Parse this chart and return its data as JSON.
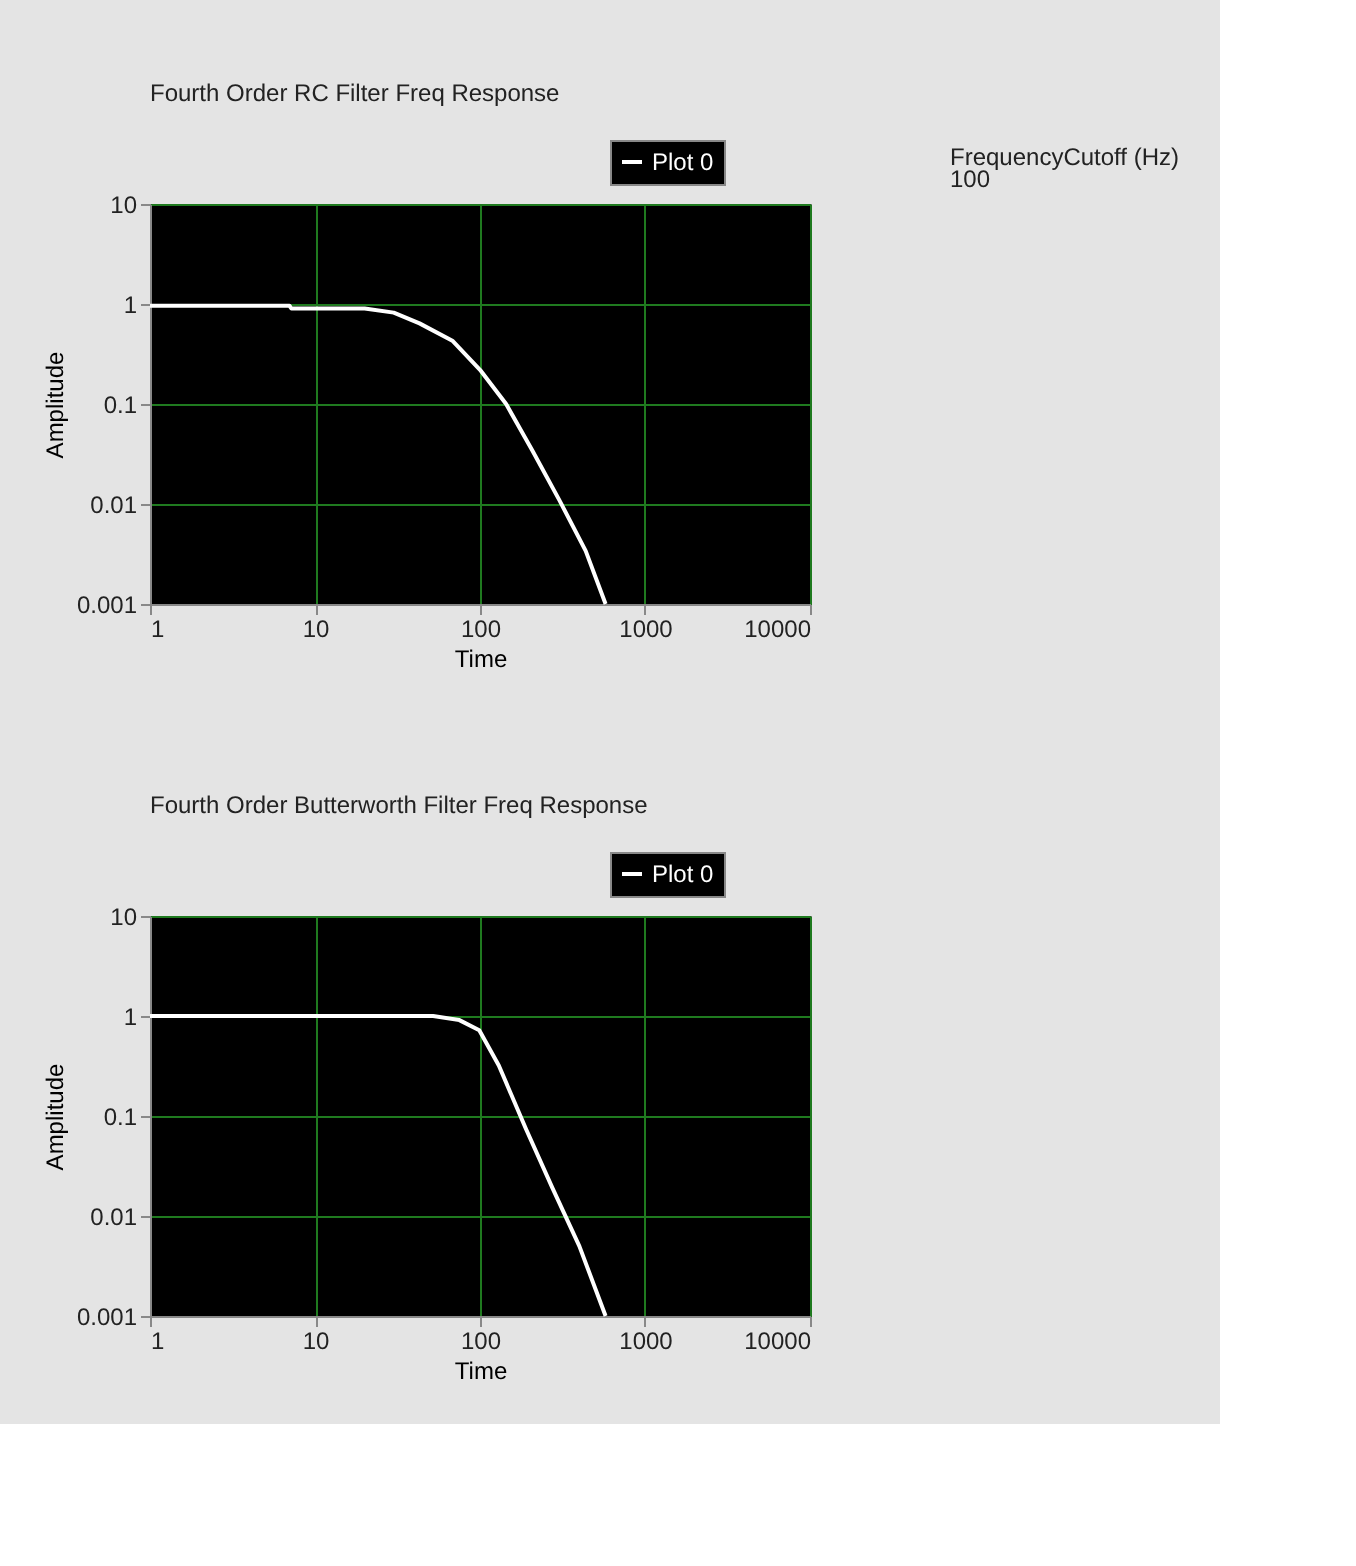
{
  "chart_data": [
    {
      "type": "line",
      "title": "Fourth Order RC Filter Freq Response",
      "xlabel": "Time",
      "ylabel": "Amplitude",
      "log": "xy",
      "grid": true,
      "legend": "top right",
      "xlim": [
        1,
        10000
      ],
      "ylim": [
        0.001,
        10
      ],
      "xticks": [
        1,
        10,
        100,
        1000,
        10000
      ],
      "yticks": [
        0.001,
        0.01,
        0.1,
        1,
        10
      ],
      "annotations": [
        "FrequencyCutoff (Hz)",
        "100"
      ],
      "series": [
        {
          "name": "Plot 0",
          "color": "#ffffff",
          "x": [
            1,
            7,
            7.2,
            20,
            30,
            43,
            68,
            100,
            144,
            208,
            302,
            437,
            577
          ],
          "values": [
            0.96,
            0.96,
            0.9,
            0.9,
            0.82,
            0.64,
            0.43,
            0.22,
            0.1,
            0.034,
            0.011,
            0.0034,
            0.001
          ]
        }
      ]
    },
    {
      "type": "line",
      "title": "Fourth Order Butterworth Filter Freq Response",
      "xlabel": "Time",
      "ylabel": "Amplitude",
      "log": "xy",
      "grid": true,
      "legend": "top right",
      "xlim": [
        1,
        10000
      ],
      "ylim": [
        0.001,
        10
      ],
      "xticks": [
        1,
        10,
        100,
        1000,
        10000
      ],
      "yticks": [
        0.001,
        0.01,
        0.1,
        1,
        10
      ],
      "series": [
        {
          "name": "Plot 0",
          "color": "#ffffff",
          "x": [
            1,
            52,
            75,
            99,
            130,
            190,
            275,
            400,
            577
          ],
          "values": [
            1,
            1,
            0.91,
            0.72,
            0.32,
            0.074,
            0.019,
            0.005,
            0.001
          ]
        }
      ]
    }
  ]
}
